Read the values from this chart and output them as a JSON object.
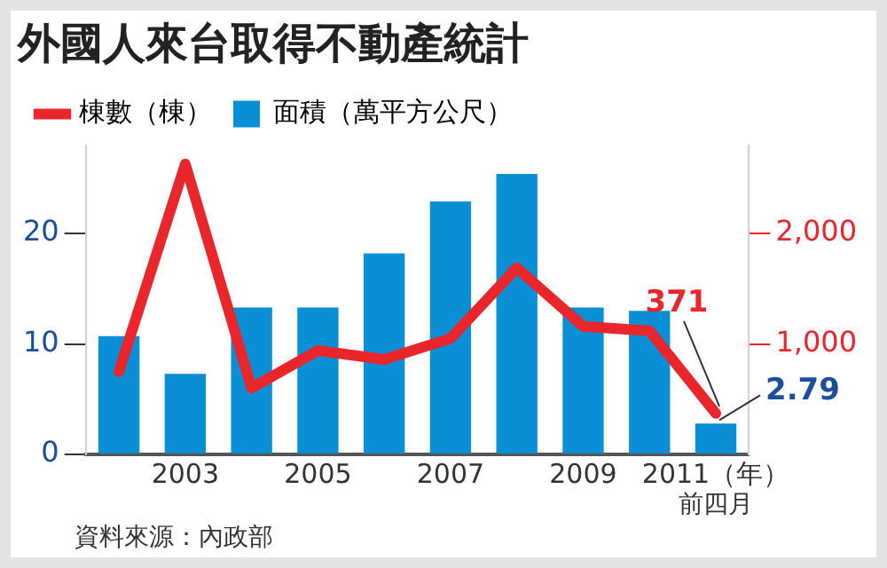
{
  "chart_data": {
    "type": "bar",
    "title": "外國人來台取得不動產統計",
    "categories": [
      null,
      "2003",
      null,
      "2005",
      null,
      "2007",
      null,
      "2009",
      null,
      "2011（年）"
    ],
    "series": [
      {
        "name": "棟數（棟）",
        "type": "line",
        "axis": "y2",
        "color": "#e8262b",
        "values": [
          750,
          2630,
          600,
          940,
          860,
          1050,
          1690,
          1160,
          1120,
          371
        ],
        "value_labels": [
          null,
          null,
          null,
          null,
          null,
          null,
          null,
          null,
          null,
          "371"
        ]
      },
      {
        "name": "面積（萬平方公尺）",
        "color": "#0a8fd6",
        "values": [
          10.7,
          7.3,
          13.3,
          13.3,
          18.2,
          22.9,
          25.4,
          13.3,
          13.0,
          2.79
        ],
        "value_labels": [
          null,
          null,
          null,
          null,
          null,
          null,
          null,
          null,
          null,
          "2.79"
        ]
      }
    ],
    "ylim": [
      0,
      28
    ],
    "yticks": [
      0,
      10,
      20
    ],
    "y2lim": [
      0,
      2800
    ],
    "y2ticks": [
      {
        "value": 1000,
        "label": "1,000"
      },
      {
        "value": 2000,
        "label": "2,000"
      }
    ],
    "grid": false,
    "legend": "top left",
    "marker": "none",
    "annotations": [
      "資料來源：內政部",
      "前四月"
    ]
  }
}
